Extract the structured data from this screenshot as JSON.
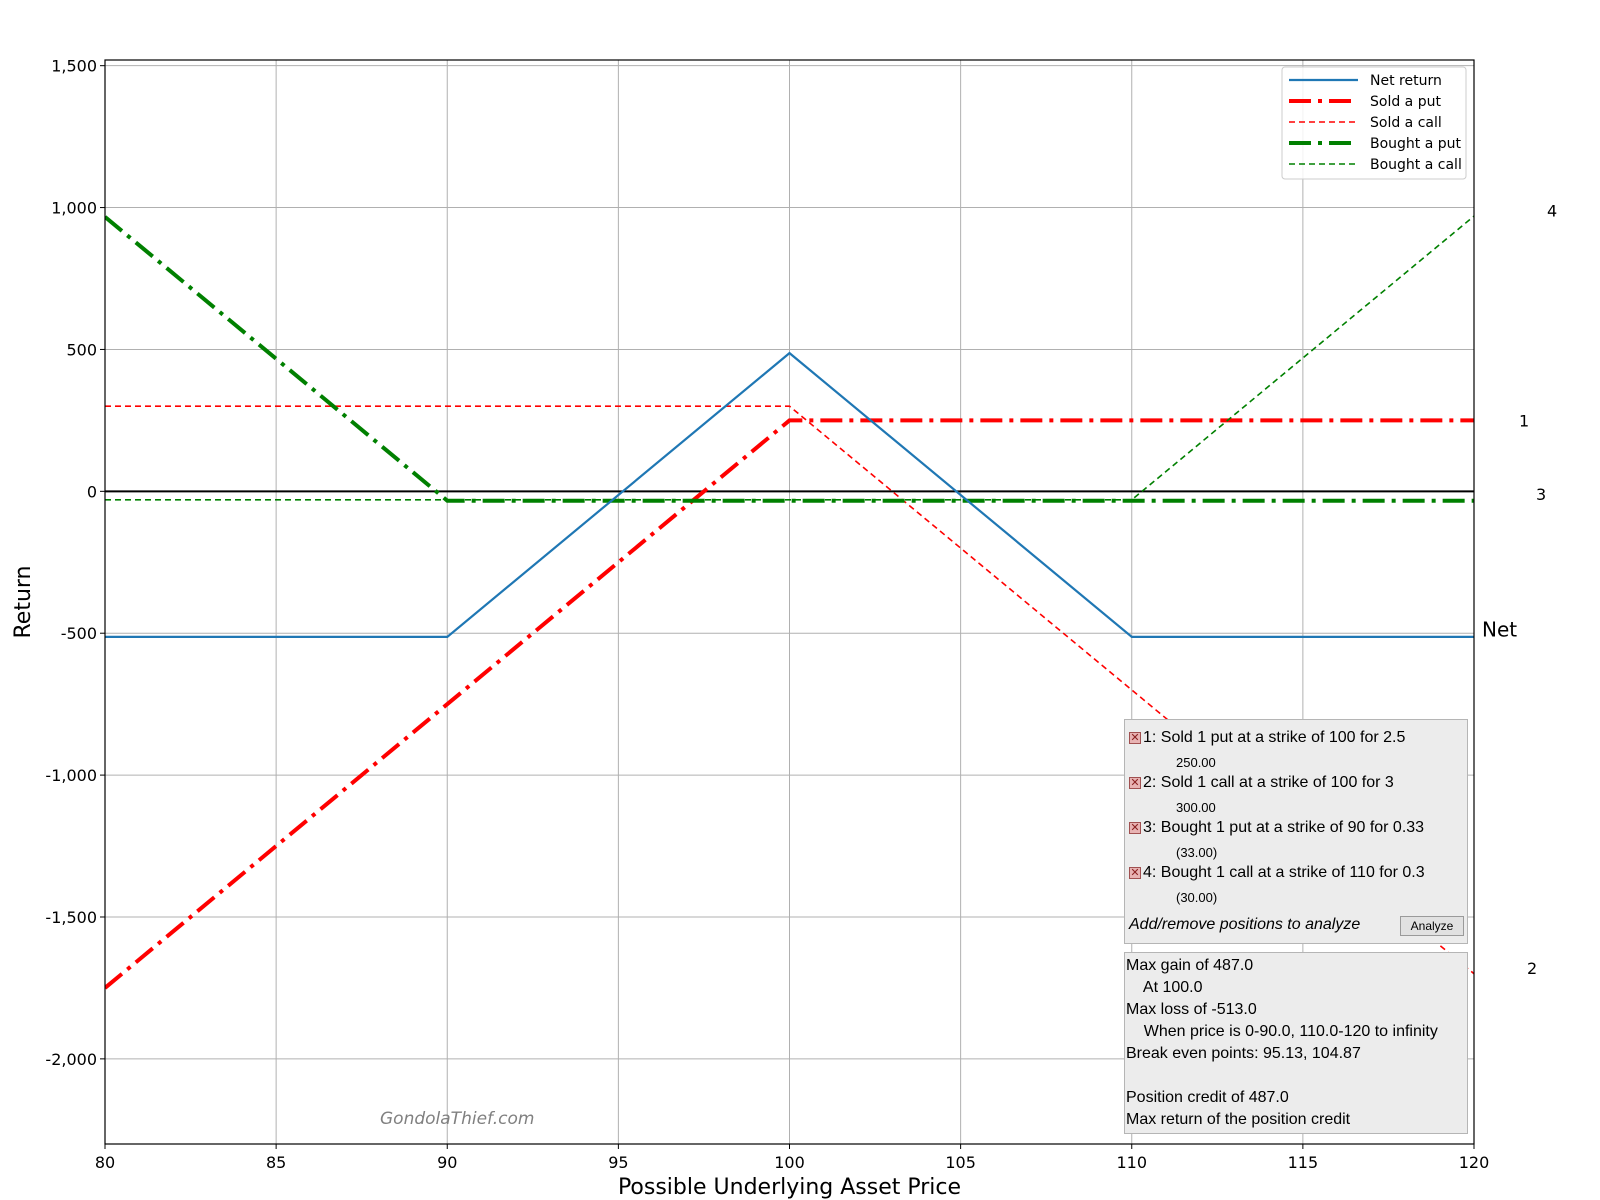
{
  "chart_data": {
    "type": "line",
    "xlabel": "Possible Underlying Asset Price",
    "ylabel": "Return",
    "xlim": [
      80,
      120
    ],
    "ylim": [
      -2300,
      1520
    ],
    "x_ticks": [
      80,
      85,
      90,
      95,
      100,
      105,
      110,
      115,
      120
    ],
    "y_ticks": [
      1500,
      1000,
      500,
      0,
      -500,
      -1000,
      -1500,
      -2000
    ],
    "y_tick_labels": [
      "1,500",
      "1,000",
      "500",
      "0",
      "-500",
      "-1,000",
      "-1,500",
      "-2,000"
    ],
    "grid": true,
    "legend_placement": "top-right",
    "series": [
      {
        "name": "Net return",
        "color": "#1f77b4",
        "style": "solid",
        "x": [
          80,
          90,
          100,
          110,
          120
        ],
        "y": [
          -513,
          -513,
          487,
          -513,
          -513
        ]
      },
      {
        "name": "Sold a put",
        "color": "#ff0000",
        "style": "dashdot-thick",
        "x": [
          80,
          100,
          120
        ],
        "y": [
          -1750,
          250,
          250
        ]
      },
      {
        "name": "Sold a call",
        "color": "#ff0000",
        "style": "dashed-thin",
        "x": [
          80,
          100,
          120
        ],
        "y": [
          300,
          300,
          -1700
        ]
      },
      {
        "name": "Bought a put",
        "color": "#008000",
        "style": "dashdot-thick",
        "x": [
          80,
          90,
          120
        ],
        "y": [
          967,
          -33,
          -33
        ]
      },
      {
        "name": "Bought a call",
        "color": "#008000",
        "style": "dashed-thin",
        "x": [
          80,
          110,
          120
        ],
        "y": [
          -30,
          -30,
          970
        ]
      }
    ],
    "end_labels": [
      {
        "text": "1",
        "y": 250
      },
      {
        "text": "2",
        "y": -1680
      },
      {
        "text": "3",
        "y": -10
      },
      {
        "text": "4",
        "y": 990
      },
      {
        "text": "Net",
        "y": -490
      }
    ]
  },
  "watermark": "GondolaThief.com",
  "positions": [
    {
      "label": "1: Sold 1 put at a strike of 100 for 2.5",
      "amount": "250.00"
    },
    {
      "label": "2: Sold 1 call at a strike of 100 for 3",
      "amount": "300.00"
    },
    {
      "label": "3: Bought 1 put at a strike of 90 for 0.33",
      "amount": "(33.00)"
    },
    {
      "label": "4: Bought 1 call at a strike of 110 for 0.3",
      "amount": "(30.00)"
    }
  ],
  "positions_footer": "Add/remove positions to analyze",
  "analyze_label": "Analyze",
  "remove_icon_glyph": "✕",
  "summary": {
    "max_gain": "Max gain of 487.0",
    "max_gain_at": "    At 100.0",
    "max_loss": "Max loss of -513.0",
    "max_loss_when": "    When price is 0-90.0, 110.0-120 to infinity",
    "break_even": "Break even points: 95.13, 104.87",
    "credit": "Position credit of 487.0",
    "max_return": "Max return of the position credit"
  }
}
